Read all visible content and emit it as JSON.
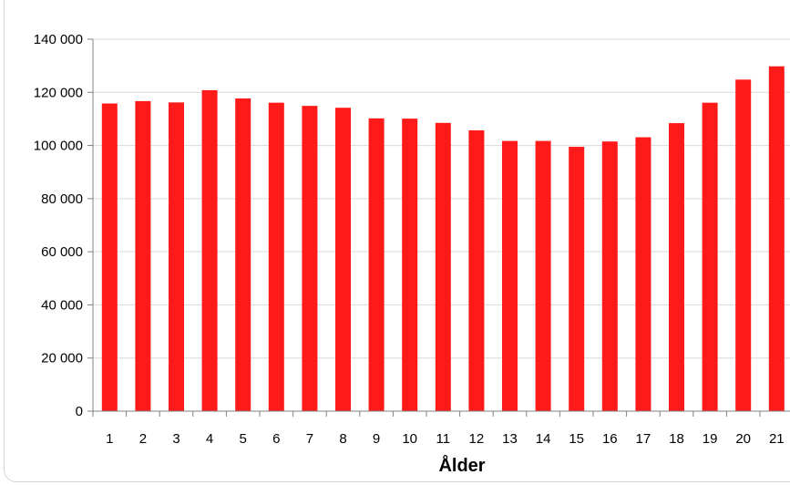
{
  "chart_data": {
    "type": "bar",
    "title": "",
    "xlabel": "Ålder",
    "ylabel": "",
    "categories": [
      "1",
      "2",
      "3",
      "4",
      "5",
      "6",
      "7",
      "8",
      "9",
      "10",
      "11",
      "12",
      "13",
      "14",
      "15",
      "16",
      "17",
      "18",
      "19",
      "20",
      "21"
    ],
    "values": [
      115800,
      116700,
      116200,
      120800,
      117700,
      116100,
      114900,
      114200,
      110200,
      110100,
      108500,
      105700,
      101700,
      101700,
      99500,
      101500,
      103100,
      108400,
      116100,
      124800,
      129800
    ],
    "ylim": [
      0,
      140000
    ],
    "yticks": [
      0,
      20000,
      40000,
      60000,
      80000,
      100000,
      120000,
      140000
    ],
    "ytick_labels": [
      "0",
      "20 000",
      "40 000",
      "60 000",
      "80 000",
      "100 000",
      "120 000",
      "140 000"
    ],
    "grid": true,
    "legend": "none",
    "bar_color": "#ff1a1a",
    "grid_color": "#d9d9d9"
  }
}
